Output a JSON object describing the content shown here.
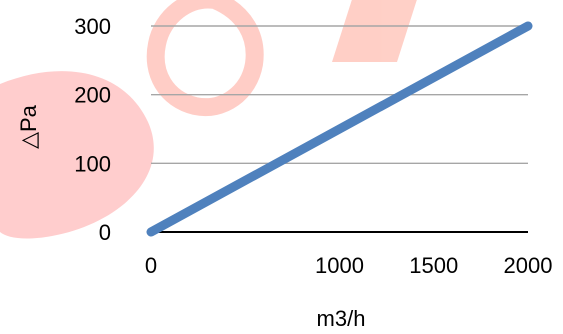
{
  "chart_data": {
    "type": "line",
    "title": "",
    "xlabel": "m3/h",
    "ylabel": "△Pa",
    "x_ticks": [
      "0",
      "1000",
      "1500",
      "2000"
    ],
    "x_tick_values": [
      0,
      1000,
      1500,
      2000
    ],
    "y_ticks": [
      "0",
      "100",
      "200",
      "300"
    ],
    "y_tick_values": [
      0,
      100,
      200,
      300
    ],
    "xlim": [
      0,
      2000
    ],
    "ylim": [
      0,
      300
    ],
    "grid": true,
    "legend": "none",
    "series": [
      {
        "x": [
          0,
          2000
        ],
        "values": [
          0,
          300
        ],
        "color": "#4f81bd"
      }
    ],
    "colors": {
      "line": "#4f81bd",
      "grid": "#a6a6a6",
      "axis": "#000000",
      "watermark": "#f8c9c5"
    }
  }
}
